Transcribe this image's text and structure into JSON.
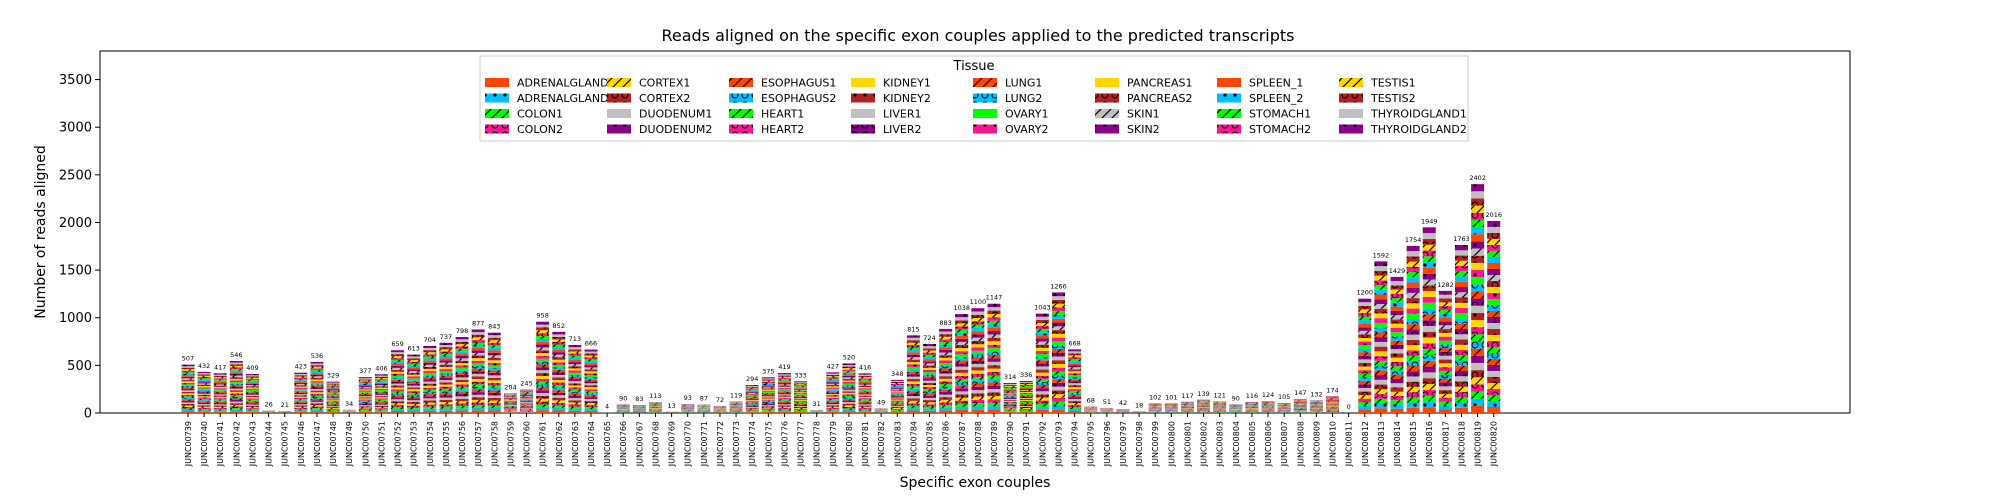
{
  "chart_data": {
    "type": "bar",
    "stacked": true,
    "title": "Reads aligned on the specific exon couples applied to the predicted transcripts",
    "xlabel": "Specific exon couples",
    "ylabel": "Number of reads aligned",
    "ylim": [
      0,
      3800
    ],
    "yticks": [
      0,
      500,
      1000,
      1500,
      2000,
      2500,
      3000,
      3500
    ],
    "grid": false,
    "legend": {
      "title": "Tissue",
      "placement": "top-center",
      "columns": 8
    },
    "categories": [
      "JUNC00739",
      "JUNC00740",
      "JUNC00741",
      "JUNC00742",
      "JUNC00743",
      "JUNC00744",
      "JUNC00745",
      "JUNC00746",
      "JUNC00747",
      "JUNC00748",
      "JUNC00749",
      "JUNC00750",
      "JUNC00751",
      "JUNC00752",
      "JUNC00753",
      "JUNC00754",
      "JUNC00755",
      "JUNC00756",
      "JUNC00757",
      "JUNC00758",
      "JUNC00759",
      "JUNC00760",
      "JUNC00761",
      "JUNC00762",
      "JUNC00763",
      "JUNC00764",
      "JUNC00765",
      "JUNC00766",
      "JUNC00767",
      "JUNC00768",
      "JUNC00769",
      "JUNC00770",
      "JUNC00771",
      "JUNC00772",
      "JUNC00773",
      "JUNC00774",
      "JUNC00775",
      "JUNC00776",
      "JUNC00777",
      "JUNC00778",
      "JUNC00779",
      "JUNC00780",
      "JUNC00781",
      "JUNC00782",
      "JUNC00783",
      "JUNC00784",
      "JUNC00785",
      "JUNC00786",
      "JUNC00787",
      "JUNC00788",
      "JUNC00789",
      "JUNC00790",
      "JUNC00791",
      "JUNC00792",
      "JUNC00793",
      "JUNC00794",
      "JUNC00795",
      "JUNC00796",
      "JUNC00797",
      "JUNC00798",
      "JUNC00799",
      "JUNC00800",
      "JUNC00801",
      "JUNC00802",
      "JUNC00803",
      "JUNC00804",
      "JUNC00805",
      "JUNC00806",
      "JUNC00807",
      "JUNC00808",
      "JUNC00809",
      "JUNC00810",
      "JUNC00811",
      "JUNC00812",
      "JUNC00813",
      "JUNC00814",
      "JUNC00815",
      "JUNC00816",
      "JUNC00817",
      "JUNC00818",
      "JUNC00819",
      "JUNC00820"
    ],
    "totals": [
      507,
      432,
      417,
      546,
      409,
      26,
      21,
      423,
      536,
      329,
      34,
      377,
      406,
      659,
      613,
      704,
      737,
      798,
      877,
      843,
      204,
      245,
      958,
      852,
      713,
      666,
      4,
      90,
      83,
      113,
      13,
      93,
      87,
      72,
      119,
      294,
      375,
      419,
      333,
      31,
      427,
      520,
      416,
      49,
      348,
      815,
      724,
      883,
      1038,
      1100,
      1147,
      314,
      336,
      1043,
      1266,
      668,
      68,
      51,
      42,
      18,
      102,
      101,
      117,
      139,
      121,
      90,
      116,
      124,
      105,
      147,
      132,
      174,
      0,
      1200,
      1592,
      1429,
      1754,
      1949,
      1282,
      1763,
      2402,
      2016
    ],
    "series": [
      {
        "name": "ADRENALGLAND1",
        "color": "#ff4500",
        "hatch": ""
      },
      {
        "name": "ADRENALGLAND2",
        "color": "#00bfff",
        "hatch": "dots"
      },
      {
        "name": "COLON1",
        "color": "#00ff00",
        "hatch": "slash"
      },
      {
        "name": "COLON2",
        "color": "#ff1493",
        "hatch": "circles"
      },
      {
        "name": "CORTEX1",
        "color": "#ffd700",
        "hatch": "slash"
      },
      {
        "name": "CORTEX2",
        "color": "#b22222",
        "hatch": "circles"
      },
      {
        "name": "DUODENUM1",
        "color": "#c0c0c0",
        "hatch": ""
      },
      {
        "name": "DUODENUM2",
        "color": "#8b008b",
        "hatch": "dots"
      },
      {
        "name": "ESOPHAGUS1",
        "color": "#ff4500",
        "hatch": "slash"
      },
      {
        "name": "ESOPHAGUS2",
        "color": "#00bfff",
        "hatch": "circles"
      },
      {
        "name": "HEART1",
        "color": "#00ff00",
        "hatch": "slash"
      },
      {
        "name": "HEART2",
        "color": "#ff1493",
        "hatch": "circles"
      },
      {
        "name": "KIDNEY1",
        "color": "#ffd700",
        "hatch": ""
      },
      {
        "name": "KIDNEY2",
        "color": "#b22222",
        "hatch": "dots"
      },
      {
        "name": "LIVER1",
        "color": "#c0c0c0",
        "hatch": ""
      },
      {
        "name": "LIVER2",
        "color": "#8b008b",
        "hatch": "circles"
      },
      {
        "name": "LUNG1",
        "color": "#ff4500",
        "hatch": "slash"
      },
      {
        "name": "LUNG2",
        "color": "#00bfff",
        "hatch": "circles"
      },
      {
        "name": "OVARY1",
        "color": "#00ff00",
        "hatch": ""
      },
      {
        "name": "OVARY2",
        "color": "#ff1493",
        "hatch": "dots"
      },
      {
        "name": "PANCREAS1",
        "color": "#ffd700",
        "hatch": ""
      },
      {
        "name": "PANCREAS2",
        "color": "#b22222",
        "hatch": "circles"
      },
      {
        "name": "SKIN1",
        "color": "#c0c0c0",
        "hatch": "slash"
      },
      {
        "name": "SKIN2",
        "color": "#8b008b",
        "hatch": "dots"
      },
      {
        "name": "SPLEEN_1",
        "color": "#ff4500",
        "hatch": ""
      },
      {
        "name": "SPLEEN_2",
        "color": "#00bfff",
        "hatch": "dots"
      },
      {
        "name": "STOMACH1",
        "color": "#00ff00",
        "hatch": "slash"
      },
      {
        "name": "STOMACH2",
        "color": "#ff1493",
        "hatch": "circles"
      },
      {
        "name": "TESTIS1",
        "color": "#ffd700",
        "hatch": "slash"
      },
      {
        "name": "TESTIS2",
        "color": "#b22222",
        "hatch": "circles"
      },
      {
        "name": "THYROIDGLAND1",
        "color": "#c0c0c0",
        "hatch": ""
      },
      {
        "name": "THYROIDGLAND2",
        "color": "#8b008b",
        "hatch": "dots"
      }
    ]
  }
}
